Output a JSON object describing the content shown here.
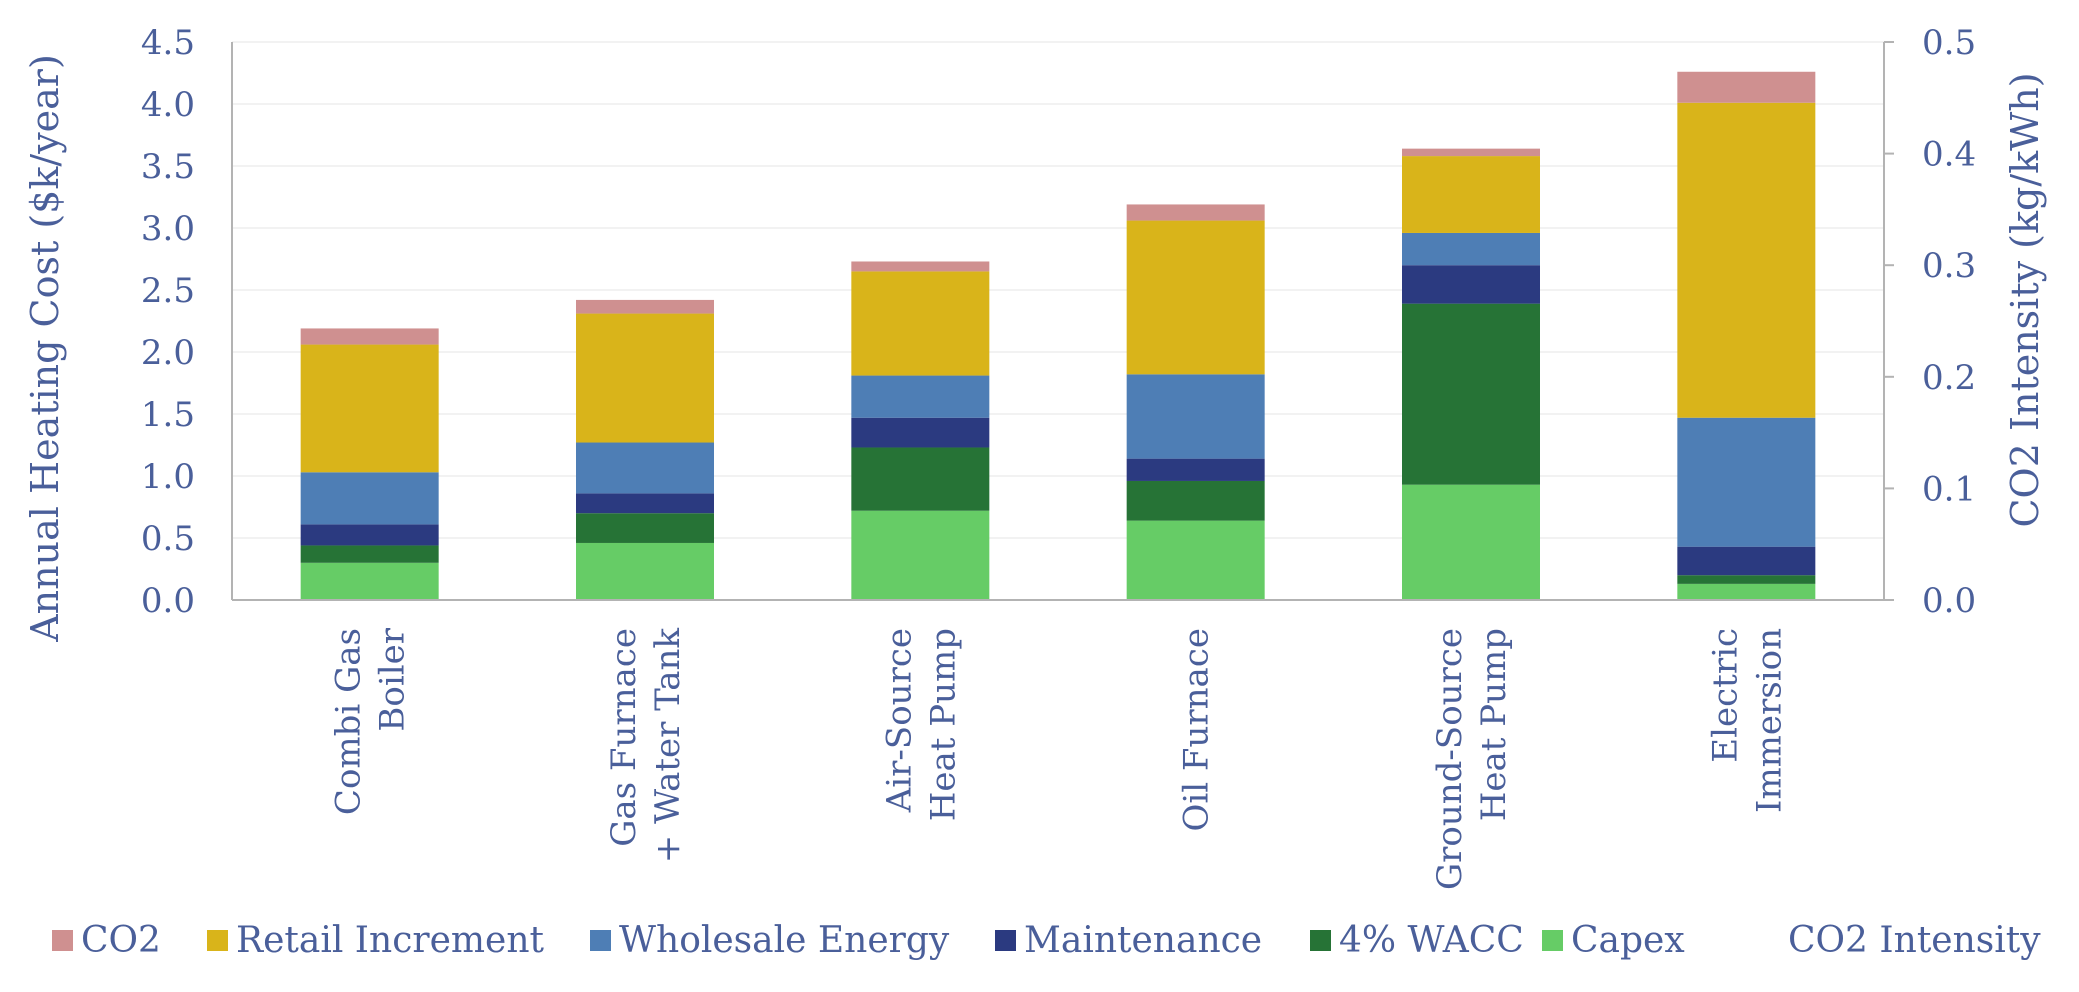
{
  "chart_data": {
    "type": "bar",
    "stacked": true,
    "categories": [
      [
        "Combi Gas",
        "Boiler"
      ],
      [
        "Gas Furnace",
        "+ Water Tank"
      ],
      [
        "Air-Source",
        "Heat Pump"
      ],
      [
        "Oil Furnace"
      ],
      [
        "Ground-Source",
        "Heat Pump"
      ],
      [
        "Electric",
        "Immersion"
      ]
    ],
    "series": [
      {
        "name": "Capex",
        "color": "#66cc66",
        "values": [
          0.3,
          0.46,
          0.72,
          0.64,
          0.93,
          0.13
        ]
      },
      {
        "name": "4% WACC",
        "color": "#267336",
        "values": [
          0.14,
          0.24,
          0.51,
          0.32,
          1.46,
          0.07
        ]
      },
      {
        "name": "Maintenance",
        "color": "#2b3a80",
        "values": [
          0.17,
          0.16,
          0.24,
          0.18,
          0.31,
          0.23
        ]
      },
      {
        "name": "Wholesale Energy",
        "color": "#4e7eb5",
        "values": [
          0.42,
          0.41,
          0.34,
          0.68,
          0.26,
          1.04
        ]
      },
      {
        "name": "Retail Increment",
        "color": "#d9b41a",
        "values": [
          1.03,
          1.04,
          0.84,
          1.24,
          0.62,
          2.54
        ]
      },
      {
        "name": "CO2",
        "color": "#cf9090",
        "values": [
          0.13,
          0.11,
          0.08,
          0.13,
          0.06,
          0.25
        ]
      }
    ],
    "secondary_series": {
      "name": "CO2 Intensity",
      "values": []
    },
    "legend_order": [
      "CO2",
      "Retail Increment",
      "Wholesale Energy",
      "Maintenance",
      "4% WACC",
      "Capex",
      "CO2 Intensity"
    ],
    "y_left": {
      "label": "Annual Heating Cost ($k/year)",
      "ylim": [
        0,
        4.5
      ],
      "ticks": [
        "0.0",
        "0.5",
        "1.0",
        "1.5",
        "2.0",
        "2.5",
        "3.0",
        "3.5",
        "4.0",
        "4.5"
      ]
    },
    "y_right": {
      "label": "CO2 Intensity (kg/kWh)",
      "ylim": [
        0,
        0.5
      ],
      "ticks": [
        "0.0",
        "0.1",
        "0.2",
        "0.3",
        "0.4",
        "0.5"
      ]
    },
    "grid": true,
    "legend_position": "bottom"
  }
}
